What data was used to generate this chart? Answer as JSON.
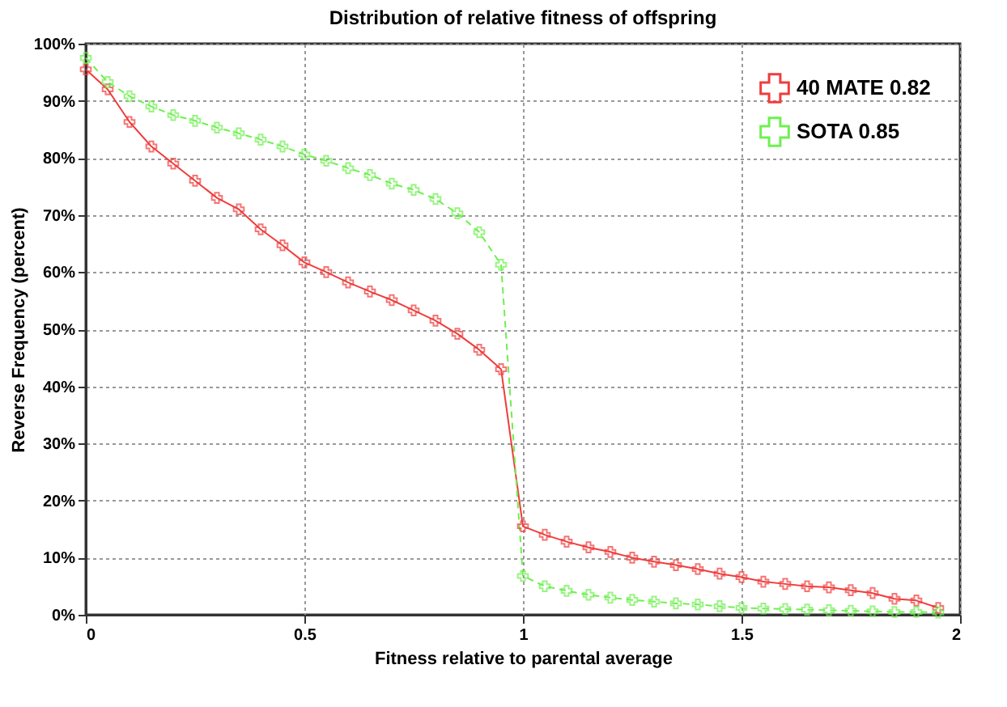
{
  "chart_data": {
    "type": "line",
    "title": "Distribution of relative fitness of offspring",
    "xlabel": "Fitness relative to parental average",
    "ylabel": "Reverse Frequency (percent)",
    "x": [
      0,
      0.05,
      0.1,
      0.15,
      0.2,
      0.25,
      0.3,
      0.35,
      0.4,
      0.45,
      0.5,
      0.55,
      0.6,
      0.65,
      0.7,
      0.75,
      0.8,
      0.85,
      0.9,
      0.95,
      1.0,
      1.05,
      1.1,
      1.15,
      1.2,
      1.25,
      1.3,
      1.35,
      1.4,
      1.45,
      1.5,
      1.55,
      1.6,
      1.65,
      1.7,
      1.75,
      1.8,
      1.85,
      1.9,
      1.95
    ],
    "series": [
      {
        "name": "40 MATE 0.82",
        "color": "#f03c3c",
        "line_style": "solid",
        "marker": "cross",
        "values": [
          95.5,
          92,
          86.3,
          82,
          79,
          76,
          73,
          71,
          67.5,
          64.7,
          61.7,
          60,
          58.2,
          56.6,
          55.1,
          53.3,
          51.5,
          49.2,
          46.4,
          43,
          15.5,
          14,
          12.8,
          11.8,
          11,
          10,
          9.3,
          8.7,
          8,
          7.2,
          6.6,
          5.8,
          5.4,
          5,
          4.8,
          4.3,
          3.8,
          2.8,
          2.5,
          1.2
        ]
      },
      {
        "name": "SOTA  0.85",
        "color": "#6ef050",
        "line_style": "dashed",
        "marker": "cross",
        "values": [
          97.5,
          93.3,
          90.8,
          89,
          87.5,
          86.5,
          85.3,
          84.3,
          83.2,
          82,
          80.6,
          79.5,
          78.2,
          77,
          75.5,
          74.4,
          72.8,
          70.3,
          67,
          61.3,
          6.8,
          5,
          4.2,
          3.5,
          3,
          2.6,
          2.3,
          2,
          1.8,
          1.5,
          1.2,
          1.1,
          1,
          0.9,
          0.8,
          0.7,
          0.6,
          0.5,
          0.5,
          0.4
        ]
      }
    ],
    "xlim": [
      0,
      2
    ],
    "xticks": [
      0,
      0.5,
      1,
      1.5,
      2
    ],
    "ylim": [
      0,
      100
    ],
    "yticks": [
      {
        "value": 0,
        "label": "0%"
      },
      {
        "value": 10,
        "label": "10%"
      },
      {
        "value": 20,
        "label": "20%"
      },
      {
        "value": 30,
        "label": "30%"
      },
      {
        "value": 40,
        "label": "40%"
      },
      {
        "value": 50,
        "label": "50%"
      },
      {
        "value": 60,
        "label": "60%"
      },
      {
        "value": 70,
        "label": "70%"
      },
      {
        "value": 80,
        "label": "80%"
      },
      {
        "value": 90,
        "label": "90%"
      },
      {
        "value": 100,
        "label": "100%"
      }
    ],
    "grid": true,
    "legend": "top right"
  }
}
